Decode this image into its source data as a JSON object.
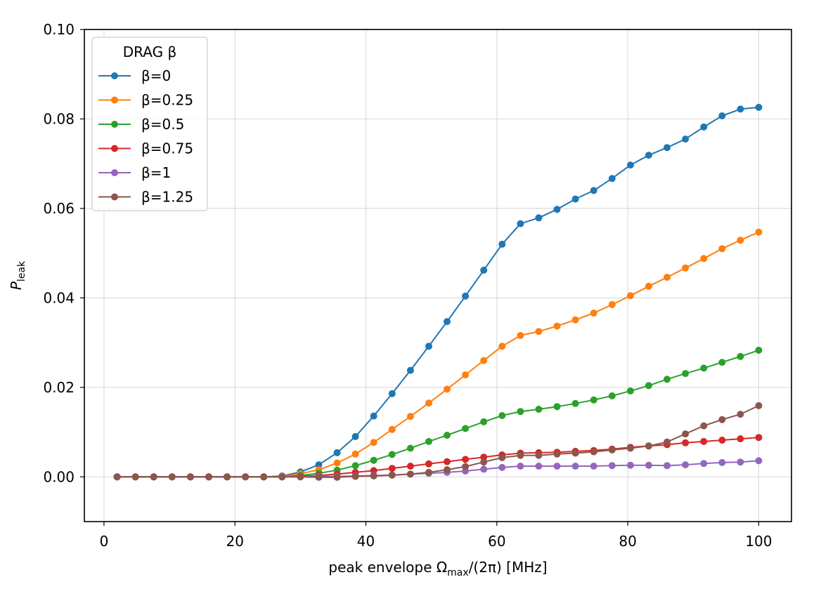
{
  "chart_data": {
    "type": "line",
    "xlabel_parts": {
      "pre": "peak envelope Ω",
      "sub": "max",
      "post": "/(2π) [MHz]"
    },
    "ylabel_parts": {
      "main": "P",
      "sub": "leak"
    },
    "xlim": [
      -3,
      105
    ],
    "ylim": [
      -0.01,
      0.1
    ],
    "xticks": [
      0,
      20,
      40,
      60,
      80,
      100
    ],
    "xtick_labels": [
      "0",
      "20",
      "40",
      "60",
      "80",
      "100"
    ],
    "yticks": [
      0.0,
      0.02,
      0.04,
      0.06,
      0.08,
      0.1
    ],
    "ytick_labels": [
      "0.00",
      "0.02",
      "0.04",
      "0.06",
      "0.08",
      "0.10"
    ],
    "grid": true,
    "legend": {
      "title": "DRAG β",
      "placement": "top-left"
    },
    "x": [
      2.0,
      4.8,
      7.6,
      10.4,
      13.2,
      16.0,
      18.8,
      21.6,
      24.4,
      27.2,
      30.0,
      32.8,
      35.6,
      38.4,
      41.2,
      44.0,
      46.8,
      49.6,
      52.4,
      55.2,
      58.0,
      60.8,
      63.6,
      66.4,
      69.2,
      72.0,
      74.8,
      77.6,
      80.4,
      83.2,
      86.0,
      88.8,
      91.6,
      94.4,
      97.2,
      100.0
    ],
    "series": [
      {
        "name": "β=0",
        "color": "#1f77b4",
        "values": [
          0,
          0,
          0,
          0,
          0,
          0,
          0,
          0,
          0,
          0.0002,
          0.0011,
          0.0027,
          0.0054,
          0.009,
          0.0136,
          0.0186,
          0.0238,
          0.0292,
          0.0347,
          0.0404,
          0.0462,
          0.052,
          0.0566,
          0.0579,
          0.0598,
          0.0621,
          0.064,
          0.0667,
          0.0697,
          0.0719,
          0.0736,
          0.0755,
          0.0782,
          0.0807,
          0.0822,
          0.0826
        ]
      },
      {
        "name": "β=0.25",
        "color": "#ff7f0e",
        "values": [
          0,
          0,
          0,
          0,
          0,
          0,
          0,
          0,
          0,
          0.0001,
          0.0007,
          0.0016,
          0.0031,
          0.0051,
          0.0077,
          0.0106,
          0.0135,
          0.0165,
          0.0196,
          0.0228,
          0.026,
          0.0292,
          0.0316,
          0.0325,
          0.0337,
          0.0351,
          0.0366,
          0.0385,
          0.0405,
          0.0426,
          0.0446,
          0.0467,
          0.0488,
          0.051,
          0.0529,
          0.0547
        ]
      },
      {
        "name": "β=0.5",
        "color": "#2ca02c",
        "values": [
          0,
          0,
          0,
          0,
          0,
          0,
          0,
          0,
          0,
          0,
          0.0003,
          0.0008,
          0.0015,
          0.0025,
          0.0037,
          0.005,
          0.0064,
          0.0079,
          0.0093,
          0.0108,
          0.0123,
          0.0137,
          0.0146,
          0.0151,
          0.0157,
          0.0164,
          0.0172,
          0.0181,
          0.0192,
          0.0204,
          0.0218,
          0.0231,
          0.0243,
          0.0256,
          0.0269,
          0.0283
        ]
      },
      {
        "name": "β=0.75",
        "color": "#d62728",
        "values": [
          0,
          0,
          0,
          0,
          0,
          0,
          0,
          0,
          0,
          0,
          0.0001,
          0.0003,
          0.0006,
          0.001,
          0.0014,
          0.0019,
          0.0024,
          0.0029,
          0.0034,
          0.0039,
          0.0044,
          0.0049,
          0.0053,
          0.0054,
          0.0055,
          0.0057,
          0.0059,
          0.0062,
          0.0066,
          0.0069,
          0.0072,
          0.0076,
          0.0079,
          0.0082,
          0.0085,
          0.0088
        ]
      },
      {
        "name": "β=1",
        "color": "#9467bd",
        "values": [
          0,
          0,
          0,
          0,
          0,
          0,
          0,
          0,
          0,
          0,
          0,
          0.0001,
          0.0001,
          0.0002,
          0.0003,
          0.0004,
          0.0006,
          0.0008,
          0.001,
          0.0013,
          0.0017,
          0.0021,
          0.0024,
          0.0024,
          0.0024,
          0.0024,
          0.0024,
          0.0025,
          0.0026,
          0.0026,
          0.0025,
          0.0027,
          0.003,
          0.0032,
          0.0033,
          0.0036
        ]
      },
      {
        "name": "β=1.25",
        "color": "#8c564b",
        "values": [
          0,
          0,
          0,
          0,
          0,
          0,
          0,
          0,
          0,
          0,
          0,
          -0.0001,
          -0.0001,
          0.0001,
          0.0002,
          0.0004,
          0.0006,
          0.001,
          0.0016,
          0.0023,
          0.0033,
          0.0043,
          0.0048,
          0.0048,
          0.0051,
          0.0053,
          0.0056,
          0.006,
          0.0064,
          0.0069,
          0.0078,
          0.0096,
          0.0114,
          0.0128,
          0.014,
          0.0159
        ]
      }
    ]
  }
}
